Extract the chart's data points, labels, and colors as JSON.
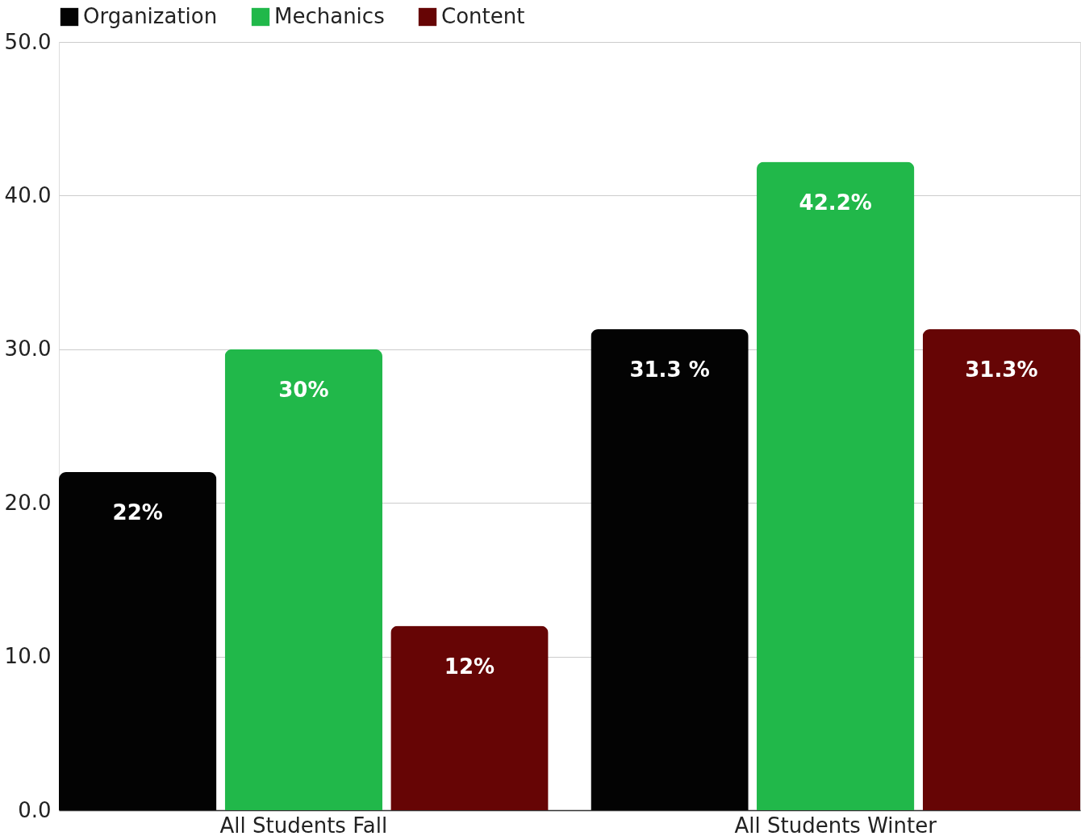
{
  "chart_data": {
    "type": "bar",
    "categories": [
      "All Students Fall",
      "All Students Winter"
    ],
    "series": [
      {
        "name": "Organization",
        "color": "#030303",
        "values": [
          22,
          31.3
        ],
        "value_labels": [
          "22%",
          "31.3 %"
        ]
      },
      {
        "name": "Mechanics",
        "color": "#21b84a",
        "values": [
          30,
          42.2
        ],
        "value_labels": [
          "30%",
          "42.2%"
        ]
      },
      {
        "name": "Content",
        "color": "#660505",
        "values": [
          12,
          31.3
        ],
        "value_labels": [
          "12%",
          "31.3%"
        ]
      }
    ],
    "ylim": [
      0,
      50
    ],
    "yticks": [
      {
        "value": 0,
        "label": "0.0"
      },
      {
        "value": 10,
        "label": "10.0"
      },
      {
        "value": 20,
        "label": "20.0"
      },
      {
        "value": 30,
        "label": "30.0"
      },
      {
        "value": 40,
        "label": "40.0"
      },
      {
        "value": 50,
        "label": "50.0"
      }
    ],
    "grid": "y",
    "legend": "top"
  }
}
